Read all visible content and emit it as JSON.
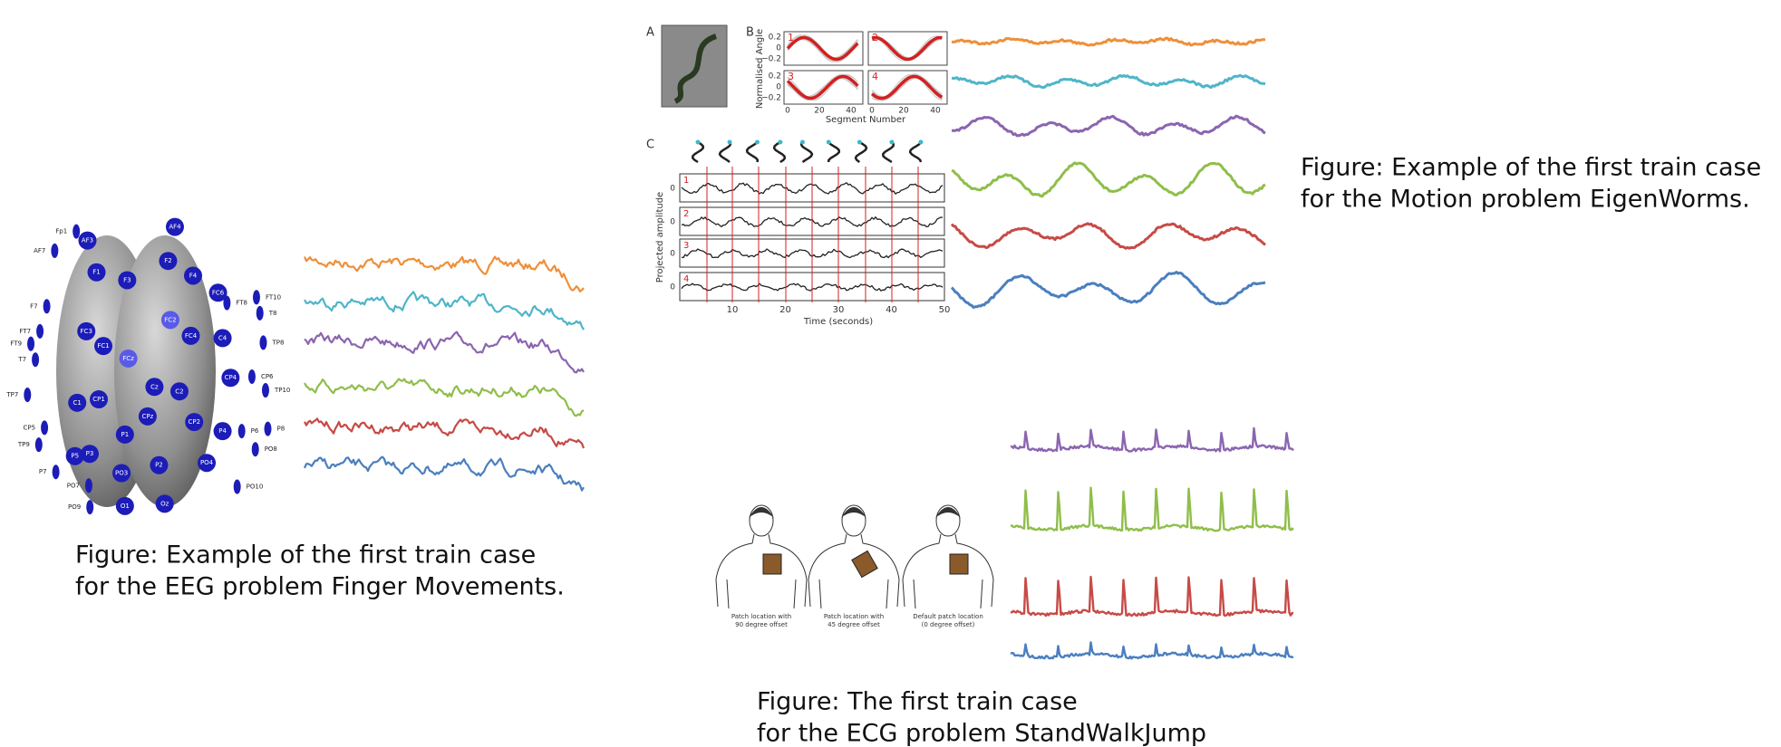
{
  "eeg": {
    "caption": [
      "Figure: Example of the first train case",
      "for the EEG problem Finger Movements."
    ],
    "electrodes": [
      "F1",
      "F2",
      "F3",
      "F4",
      "FC3",
      "FC1",
      "FC2",
      "FC4",
      "C4",
      "FCz",
      "Cz",
      "C2",
      "C1",
      "CP1",
      "CP2",
      "CPz",
      "P1",
      "P2",
      "P3",
      "P5",
      "PO3",
      "P4",
      "PO4",
      "O1",
      "Oz",
      "CP4",
      "FC6",
      "AF4",
      "AF3",
      "Fp1",
      "AF7",
      "F7",
      "FT7",
      "FT9",
      "T7",
      "TP7",
      "CP5",
      "TP9",
      "P7",
      "PO7",
      "PO9",
      "FT10",
      "T8",
      "TP8",
      "CP6",
      "TP10",
      "P6",
      "P8",
      "PO8",
      "PO10",
      "FT8"
    ]
  },
  "motion": {
    "caption": [
      "Figure: Example of the first train case",
      "for the Motion problem EigenWorms."
    ],
    "panel_labels": [
      "A",
      "B",
      "C"
    ],
    "b": {
      "ylabel": "Normalised Angle",
      "xlabel": "Segment Number",
      "yticks": [
        "0.2",
        "0",
        "−0.2"
      ],
      "xticks": [
        "0",
        "20",
        "40"
      ],
      "subplots": [
        "1",
        "2",
        "3",
        "4"
      ]
    },
    "c": {
      "ylabel": "Projected amplitude",
      "xlabel": "Time (seconds)",
      "rows": [
        "1",
        "2",
        "3",
        "4"
      ],
      "row_tick": "0",
      "xticks": [
        "10",
        "20",
        "30",
        "40",
        "50"
      ]
    }
  },
  "ecg": {
    "caption": [
      "Figure: The first train case",
      "for the ECG problem StandWalkJump"
    ],
    "patches": [
      [
        "Patch location with",
        "90 degree offset"
      ],
      [
        "Patch location with",
        "45 degree offset"
      ],
      [
        "Default patch location",
        "(0 degree offset)"
      ]
    ]
  }
}
